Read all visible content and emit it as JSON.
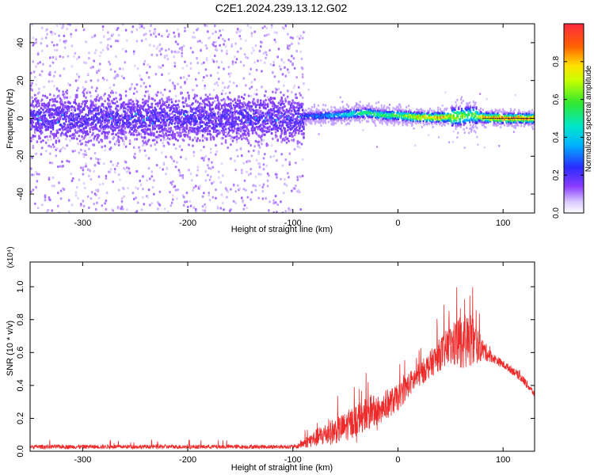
{
  "title": "C2E1.2024.239.13.12.G02",
  "colors": {
    "spectrogram_noise": "#8a3dff",
    "spectrogram_faint": "#d9c7ff",
    "snr_line": "#ee2a2a",
    "frame": "#000000"
  },
  "chart_data": [
    {
      "type": "heatmap",
      "name": "spectrogram",
      "xlabel": "Height of straight line (km)",
      "ylabel": "Frequency (Hz)",
      "xlim": [
        -350,
        130
      ],
      "ylim": [
        -50,
        50
      ],
      "x_ticks": [
        -300,
        -200,
        -100,
        0,
        100
      ],
      "x_tick_labels": [
        "-300",
        "-200",
        "-100",
        "0",
        "100"
      ],
      "y_ticks": [
        -40,
        -20,
        0,
        20,
        40
      ],
      "y_tick_labels": [
        "-40",
        "-20",
        "0",
        "20",
        "40"
      ],
      "noise_region_x": [
        -350,
        -90
      ],
      "signal_region_x": [
        -90,
        130
      ],
      "signal_trend": {
        "x": [
          -90,
          -60,
          -40,
          -30,
          -20,
          -10,
          0,
          20,
          40,
          60,
          70,
          80,
          100,
          130
        ],
        "freq": [
          1,
          1.5,
          2.5,
          3,
          2,
          1.5,
          1.5,
          0.5,
          0.5,
          1,
          2,
          0.5,
          0,
          0
        ],
        "peak_amplitude": [
          0.3,
          0.4,
          0.55,
          0.6,
          0.6,
          0.6,
          0.65,
          0.85,
          0.9,
          0.7,
          0.6,
          0.9,
          0.95,
          0.95
        ]
      },
      "colorbar": {
        "label": "Normalized spectral amplitude",
        "range": [
          0,
          1
        ],
        "ticks": [
          0.0,
          0.2,
          0.4,
          0.6,
          0.8
        ],
        "tick_labels": [
          "0.0",
          "0.2",
          "0.4",
          "0.6",
          "0.8"
        ]
      }
    },
    {
      "type": "line",
      "name": "snr",
      "xlabel": "Height of straight line (km)",
      "ylabel": "SNR (10 * v/v)",
      "scale_label": "(x10⁴)",
      "xlim": [
        -350,
        130
      ],
      "ylim": [
        0,
        1.15
      ],
      "x_ticks": [
        -300,
        -200,
        -100,
        0,
        100
      ],
      "x_tick_labels": [
        "-300",
        "-200",
        "-100",
        "0",
        "100"
      ],
      "y_ticks": [
        0.0,
        0.2,
        0.4,
        0.6,
        0.8,
        1.0
      ],
      "y_tick_labels": [
        "0.0",
        "0.2",
        "0.4",
        "0.6",
        "0.8",
        "1.0"
      ],
      "envelope": {
        "x": [
          -350,
          -100,
          -90,
          -80,
          -70,
          -60,
          -50,
          -40,
          -30,
          -20,
          -10,
          0,
          10,
          20,
          30,
          40,
          50,
          60,
          70,
          80,
          90,
          100,
          110,
          120,
          130
        ],
        "baseline": [
          0.02,
          0.02,
          0.04,
          0.06,
          0.08,
          0.1,
          0.12,
          0.16,
          0.2,
          0.22,
          0.26,
          0.3,
          0.38,
          0.44,
          0.5,
          0.56,
          0.6,
          0.62,
          0.62,
          0.6,
          0.56,
          0.52,
          0.48,
          0.42,
          0.34
        ],
        "spread": [
          0.02,
          0.02,
          0.06,
          0.1,
          0.14,
          0.16,
          0.18,
          0.2,
          0.2,
          0.2,
          0.18,
          0.16,
          0.15,
          0.15,
          0.16,
          0.2,
          0.26,
          0.34,
          0.32,
          0.14,
          0.06,
          0.05,
          0.05,
          0.05,
          0.04
        ]
      }
    }
  ]
}
